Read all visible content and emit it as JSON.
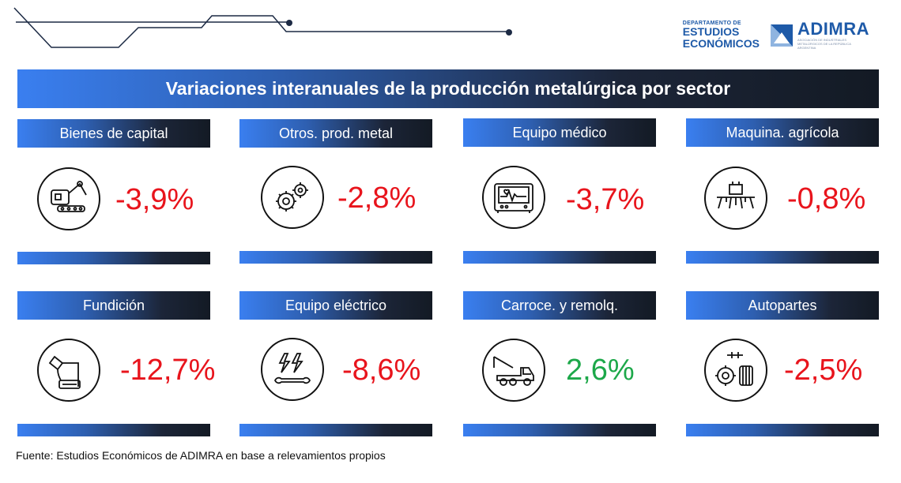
{
  "header": {
    "dept_small": "DEPARTAMENTO DE",
    "dept_line1": "ESTUDIOS",
    "dept_line2": "ECONÓMICOS",
    "brand": "ADIMRA",
    "brand_sub": "ASOCIACIÓN DE INDUSTRIALES METALÚRGICOS DE LA REPÚBLICA ARGENTINA"
  },
  "title": "Variaciones interanuales de la producción metalúrgica por sector",
  "cards": [
    {
      "label": "Bienes de capital",
      "value": "-3,9%",
      "icon": "robot-arm-icon",
      "trend": "negative"
    },
    {
      "label": "Otros. prod. metal",
      "value": "-2,8%",
      "icon": "gears-icon",
      "trend": "negative"
    },
    {
      "label": "Equipo médico",
      "value": "-3,7%",
      "icon": "heart-monitor-icon",
      "trend": "negative"
    },
    {
      "label": "Maquina. agrícola",
      "value": "-0,8%",
      "icon": "seeder-icon",
      "trend": "negative"
    },
    {
      "label": "Fundición",
      "value": "-12,7%",
      "icon": "foundry-crucible-icon",
      "trend": "negative"
    },
    {
      "label": "Equipo eléctrico",
      "value": "-8,6%",
      "icon": "electric-wrench-icon",
      "trend": "negative"
    },
    {
      "label": "Carroce. y remolq.",
      "value": "2,6%",
      "icon": "tow-truck-icon",
      "trend": "positive"
    },
    {
      "label": "Autopartes",
      "value": "-2,5%",
      "icon": "auto-parts-icon",
      "trend": "negative"
    }
  ],
  "colors": {
    "negative": "#e8141c",
    "positive": "#1da84a",
    "accent": "#3a7ff0",
    "dark": "#131a24"
  },
  "source": "Fuente: Estudios Económicos de ADIMRA en base a relevamientos propios"
}
